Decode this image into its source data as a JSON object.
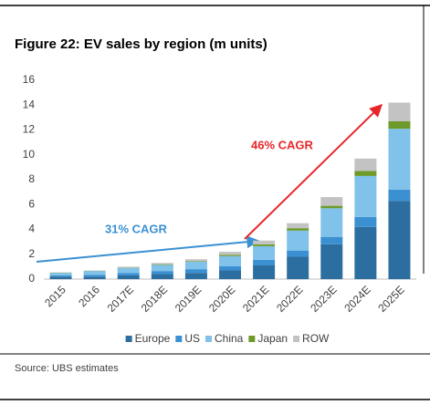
{
  "chart_data": {
    "type": "stacked_bar",
    "title": "Figure 22: EV sales by region (m units)",
    "source": "Source:  UBS estimates",
    "annotations": [
      "31% CAGR",
      "46% CAGR"
    ],
    "categories": [
      "2015",
      "2016",
      "2017E",
      "2018E",
      "2019E",
      "2020E",
      "2021E",
      "2022E",
      "2023E",
      "2024E",
      "2025E"
    ],
    "series": [
      {
        "name": "Europe",
        "color": "#2c6e9f",
        "values": [
          0.2,
          0.2,
          0.3,
          0.4,
          0.5,
          0.7,
          1.1,
          1.8,
          2.8,
          4.2,
          6.3
        ]
      },
      {
        "name": "US",
        "color": "#3b90d2",
        "values": [
          0.1,
          0.15,
          0.2,
          0.25,
          0.3,
          0.35,
          0.45,
          0.5,
          0.6,
          0.8,
          0.9
        ]
      },
      {
        "name": "China",
        "color": "#80c2ea",
        "values": [
          0.2,
          0.3,
          0.4,
          0.5,
          0.6,
          0.8,
          1.1,
          1.6,
          2.3,
          3.3,
          4.9
        ]
      },
      {
        "name": "Japan",
        "color": "#6e9a2c",
        "values": [
          0.02,
          0.02,
          0.03,
          0.05,
          0.05,
          0.1,
          0.15,
          0.2,
          0.2,
          0.4,
          0.6
        ]
      },
      {
        "name": "ROW",
        "color": "#c3c3c3",
        "values": [
          0.03,
          0.03,
          0.07,
          0.1,
          0.15,
          0.25,
          0.3,
          0.4,
          0.7,
          1.0,
          1.5
        ]
      }
    ],
    "ylim": [
      0,
      16
    ],
    "yticks": [
      0,
      2,
      4,
      6,
      8,
      10,
      12,
      14,
      16
    ],
    "legend": "bottom"
  }
}
